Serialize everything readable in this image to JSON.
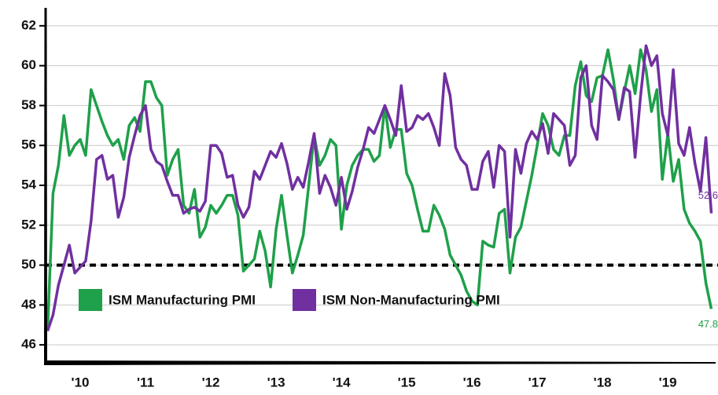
{
  "chart_data": {
    "type": "line",
    "categories": [
      null,
      null,
      null,
      null,
      null,
      null,
      "'10",
      null,
      null,
      null,
      null,
      null,
      null,
      null,
      null,
      null,
      null,
      null,
      "'11",
      null,
      null,
      null,
      null,
      null,
      null,
      null,
      null,
      null,
      null,
      null,
      "'12",
      null,
      null,
      null,
      null,
      null,
      null,
      null,
      null,
      null,
      null,
      null,
      "'13",
      null,
      null,
      null,
      null,
      null,
      null,
      null,
      null,
      null,
      null,
      null,
      "'14",
      null,
      null,
      null,
      null,
      null,
      null,
      null,
      null,
      null,
      null,
      null,
      "'15",
      null,
      null,
      null,
      null,
      null,
      null,
      null,
      null,
      null,
      null,
      null,
      "'16",
      null,
      null,
      null,
      null,
      null,
      null,
      null,
      null,
      null,
      null,
      null,
      "'17",
      null,
      null,
      null,
      null,
      null,
      null,
      null,
      null,
      null,
      null,
      null,
      "'18",
      null,
      null,
      null,
      null,
      null,
      null,
      null,
      null,
      null,
      null,
      null,
      "'19",
      null,
      null,
      null,
      null,
      null,
      null,
      null,
      null
    ],
    "series": [
      {
        "name": "ISM Manufacturing PMI",
        "color": "#1fa04a",
        "values": [
          46.7,
          53.6,
          55.0,
          57.5,
          55.5,
          56.0,
          56.3,
          55.5,
          58.8,
          58.0,
          57.2,
          56.5,
          56.0,
          56.3,
          55.3,
          57.0,
          57.4,
          56.7,
          59.2,
          59.2,
          58.4,
          58.0,
          54.5,
          55.3,
          55.8,
          53.0,
          52.6,
          53.8,
          51.4,
          51.9,
          53.0,
          52.6,
          53.0,
          53.5,
          53.5,
          52.5,
          49.7,
          50.0,
          50.3,
          51.7,
          50.7,
          48.9,
          51.8,
          53.5,
          51.5,
          49.6,
          50.5,
          51.5,
          54.0,
          56.5,
          55.0,
          55.5,
          56.3,
          56.0,
          51.8,
          54.0,
          55.0,
          55.5,
          55.8,
          55.8,
          55.2,
          55.5,
          58.0,
          55.9,
          56.8,
          56.8,
          54.6,
          54.0,
          52.8,
          51.7,
          51.7,
          53.0,
          52.5,
          51.8,
          50.5,
          50.0,
          49.5,
          48.7,
          48.2,
          48.0,
          51.2,
          51.0,
          50.9,
          52.6,
          52.8,
          49.6,
          51.4,
          51.9,
          53.2,
          54.5,
          56.0,
          57.6,
          57.0,
          55.8,
          55.5,
          56.5,
          56.5,
          59.0,
          60.2,
          58.5,
          58.2,
          59.4,
          59.5,
          60.8,
          59.3,
          57.3,
          58.7,
          60.0,
          58.6,
          60.8,
          59.8,
          57.7,
          58.8,
          54.3,
          56.6,
          54.2,
          55.3,
          52.8,
          52.1,
          51.7,
          51.2,
          49.1,
          47.8
        ]
      },
      {
        "name": "ISM Non-Manufacturing PMI",
        "color": "#7030a0",
        "values": [
          46.7,
          47.5,
          49.0,
          50.0,
          51.0,
          49.6,
          49.9,
          50.2,
          52.2,
          55.3,
          55.5,
          54.3,
          54.5,
          52.4,
          53.4,
          55.4,
          56.5,
          57.5,
          58.0,
          55.8,
          55.2,
          55.0,
          54.2,
          53.5,
          53.5,
          52.6,
          52.8,
          52.9,
          52.7,
          53.2,
          56.0,
          56.0,
          55.6,
          54.4,
          54.5,
          53.0,
          52.4,
          52.9,
          54.7,
          54.3,
          55.0,
          55.7,
          55.4,
          56.1,
          55.1,
          53.8,
          54.4,
          53.9,
          55.2,
          56.6,
          53.6,
          54.5,
          53.9,
          53.0,
          54.4,
          52.8,
          53.7,
          54.9,
          55.8,
          56.9,
          56.6,
          57.3,
          58.0,
          57.3,
          56.5,
          59.0,
          56.7,
          56.9,
          57.5,
          57.3,
          57.6,
          56.9,
          56.0,
          59.6,
          58.5,
          55.9,
          55.3,
          55.0,
          53.8,
          53.8,
          55.2,
          55.7,
          53.9,
          56.0,
          55.7,
          51.4,
          55.8,
          54.6,
          56.1,
          56.7,
          56.3,
          57.1,
          55.6,
          57.6,
          57.3,
          57.0,
          55.0,
          55.5,
          59.4,
          60.0,
          57.0,
          56.3,
          59.5,
          59.2,
          58.8,
          57.3,
          58.9,
          58.7,
          55.4,
          58.5,
          61.0,
          60.0,
          60.5,
          57.6,
          56.5,
          59.8,
          56.1,
          55.5,
          56.9,
          55.1,
          53.7,
          56.4,
          52.6
        ]
      }
    ],
    "ylim": [
      45.1,
      62.9
    ],
    "yticks": [
      46,
      48,
      50,
      52,
      54,
      56,
      58,
      60,
      62
    ],
    "grid": true,
    "reference_line": 50,
    "legend": "lower left",
    "end_labels": true
  }
}
